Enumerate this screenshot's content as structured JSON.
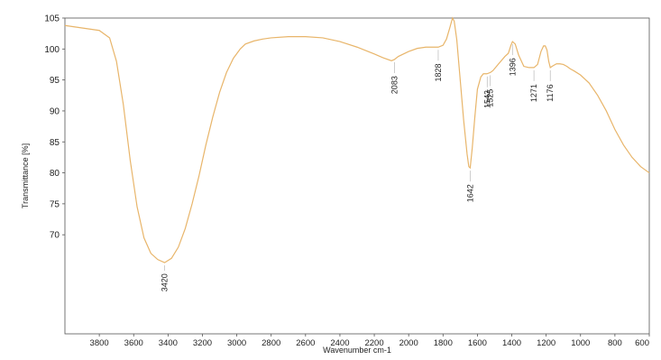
{
  "chart_data": {
    "type": "line",
    "title": "",
    "xlabel": "Wavenumber cm-1",
    "ylabel": "Transmittance [%]",
    "xlim": [
      4000,
      600
    ],
    "x_reversed": true,
    "ylim": [
      54,
      105
    ],
    "xticks": [
      "3800",
      "3600",
      "3400",
      "3200",
      "3000",
      "2800",
      "2600",
      "2400",
      "2200",
      "2000",
      "1800",
      "1600",
      "1400",
      "1200",
      "1000",
      "800",
      "600"
    ],
    "yticks": [
      "70",
      "75",
      "80",
      "85",
      "90",
      "95",
      "100",
      "105"
    ],
    "grid": false,
    "line_color": "#e8b56a",
    "series": [
      {
        "x": [
          4000,
          3900,
          3800,
          3740,
          3700,
          3660,
          3620,
          3580,
          3540,
          3500,
          3460,
          3420,
          3380,
          3340,
          3300,
          3260,
          3220,
          3180,
          3140,
          3100,
          3060,
          3020,
          2980,
          2950,
          2900,
          2850,
          2800,
          2700,
          2600,
          2500,
          2400,
          2300,
          2200,
          2150,
          2100,
          2083,
          2060,
          2000,
          1950,
          1900,
          1850,
          1828,
          1800,
          1780,
          1760,
          1745,
          1735,
          1720,
          1700,
          1680,
          1660,
          1650,
          1642,
          1630,
          1615,
          1600,
          1580,
          1565,
          1545,
          1525,
          1510,
          1480,
          1440,
          1420,
          1405,
          1396,
          1380,
          1360,
          1330,
          1300,
          1285,
          1271,
          1250,
          1230,
          1215,
          1205,
          1195,
          1185,
          1176,
          1160,
          1140,
          1120,
          1100,
          1080,
          1060,
          1040,
          1000,
          950,
          900,
          850,
          800,
          750,
          700,
          650,
          600
        ],
        "y": [
          103.8,
          103.4,
          103.0,
          101.8,
          98.0,
          91.0,
          82.0,
          74.5,
          69.5,
          67.0,
          66.0,
          65.5,
          66.2,
          68.0,
          71.0,
          75.0,
          79.5,
          84.5,
          89.0,
          93.0,
          96.2,
          98.5,
          100.0,
          100.8,
          101.3,
          101.6,
          101.8,
          102.0,
          102.0,
          101.8,
          101.2,
          100.3,
          99.2,
          98.6,
          98.1,
          98.3,
          98.8,
          99.6,
          100.1,
          100.3,
          100.3,
          100.3,
          100.6,
          101.6,
          103.5,
          105.0,
          104.5,
          101.5,
          95.0,
          88.5,
          83.0,
          81.0,
          80.8,
          84.0,
          89.0,
          93.5,
          95.5,
          96.0,
          96.0,
          96.2,
          96.5,
          97.5,
          98.8,
          99.3,
          100.6,
          101.2,
          100.8,
          99.0,
          97.2,
          97.0,
          97.0,
          97.0,
          97.5,
          99.6,
          100.5,
          100.5,
          99.8,
          98.0,
          97.0,
          97.3,
          97.6,
          97.6,
          97.5,
          97.2,
          96.8,
          96.5,
          95.8,
          94.5,
          92.5,
          90.0,
          87.0,
          84.5,
          82.5,
          81.0,
          80.0
        ]
      }
    ],
    "peaks": [
      {
        "label": "3420",
        "x": 3420,
        "y": 65.5
      },
      {
        "label": "2083",
        "x": 2083,
        "y": 98.3
      },
      {
        "label": "1828",
        "x": 1828,
        "y": 100.3
      },
      {
        "label": "1642",
        "x": 1642,
        "y": 80.8
      },
      {
        "label": "1543",
        "x": 1543,
        "y": 96.0
      },
      {
        "label": "1525",
        "x": 1525,
        "y": 96.2
      },
      {
        "label": "1396",
        "x": 1396,
        "y": 101.2
      },
      {
        "label": "1271",
        "x": 1271,
        "y": 97.0
      },
      {
        "label": "1176",
        "x": 1176,
        "y": 97.0
      }
    ]
  }
}
